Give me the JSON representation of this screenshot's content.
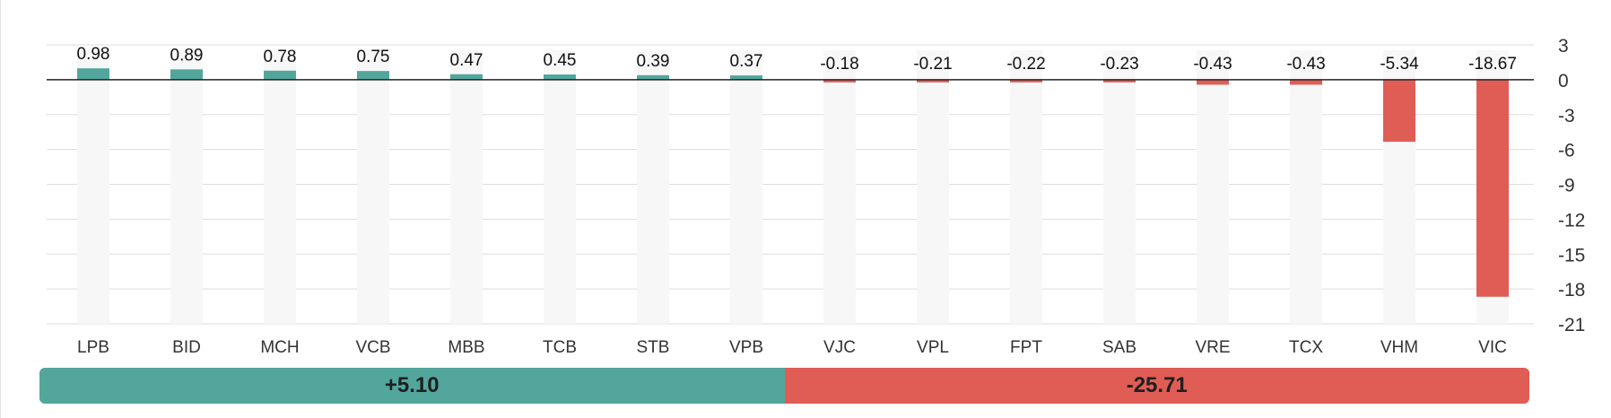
{
  "chart_data": {
    "type": "bar",
    "categories": [
      "LPB",
      "BID",
      "MCH",
      "VCB",
      "MBB",
      "TCB",
      "STB",
      "VPB",
      "VJC",
      "VPL",
      "FPT",
      "SAB",
      "VRE",
      "TCX",
      "VHM",
      "VIC"
    ],
    "values": [
      0.98,
      0.89,
      0.78,
      0.75,
      0.47,
      0.45,
      0.39,
      0.37,
      -0.18,
      -0.21,
      -0.22,
      -0.23,
      -0.43,
      -0.43,
      -5.34,
      -18.67
    ],
    "value_labels": [
      "0.98",
      "0.89",
      "0.78",
      "0.75",
      "0.47",
      "0.45",
      "0.39",
      "0.37",
      "-0.18",
      "-0.21",
      "-0.22",
      "-0.23",
      "-0.43",
      "-0.43",
      "-5.34",
      "-18.67"
    ],
    "ylim": [
      -21,
      3
    ],
    "yticks": [
      3,
      0,
      -3,
      -6,
      -9,
      -12,
      -15,
      -18,
      -21
    ],
    "ytick_labels": [
      "3",
      "0",
      "-3",
      "-6",
      "-9",
      "-12",
      "-15",
      "-18",
      "-21"
    ],
    "grid": true,
    "positive_color": "#53a69c",
    "negative_color": "#e05d56",
    "track_color": "#f7f7f7"
  },
  "summary": {
    "positive_label": "+5.10",
    "negative_label": "-25.71",
    "positive_value": 5.1,
    "negative_value": -25.71,
    "positive_color": "#53a69c",
    "negative_color": "#e05d56"
  }
}
